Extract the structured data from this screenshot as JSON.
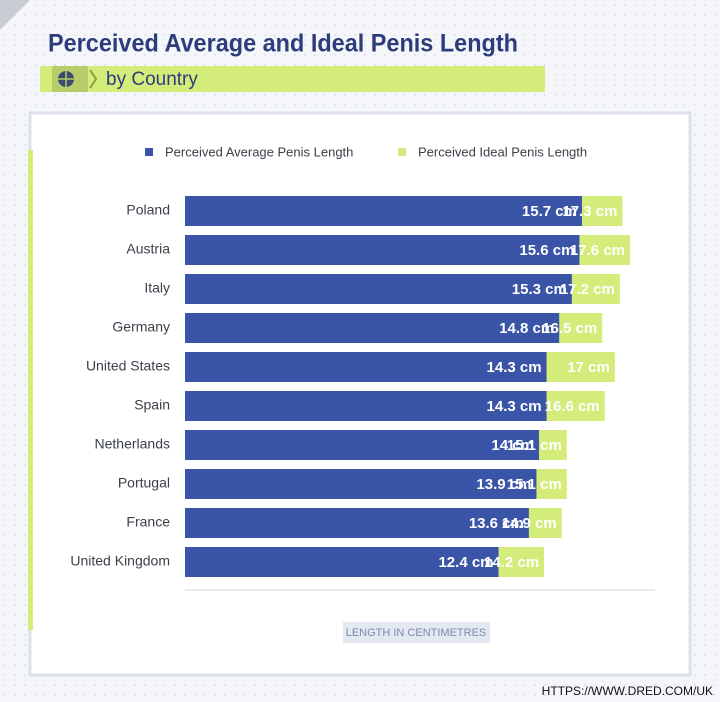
{
  "chart_data": {
    "type": "bar",
    "title": "Perceived Average and Ideal Penis Length",
    "subtitle": "by Country",
    "x_label": "LENGTH IN CENTIMETRES",
    "source": "HTTPS://WWW.DRED.COM/UK",
    "categories": [
      "Poland",
      "Austria",
      "Italy",
      "Germany",
      "United States",
      "Spain",
      "Netherlands",
      "Portugal",
      "France",
      "United Kingdom"
    ],
    "series": [
      {
        "name": "Perceived Average Penis Length",
        "color": "#3a55a8",
        "values": [
          15.7,
          15.6,
          15.3,
          14.8,
          14.3,
          14.3,
          14,
          13.9,
          13.6,
          12.4
        ],
        "value_labels": [
          "15.7 cm",
          "15.6 cm",
          "15.3 cm",
          "14.8 cm",
          "14.3 cm",
          "14.3 cm",
          "14 cm",
          "13.9 cm",
          "13.6 cm",
          "12.4 cm"
        ]
      },
      {
        "name": "Perceived Ideal Penis Length",
        "color": "#d4ec7a",
        "values": [
          17.3,
          17.6,
          17.2,
          16.5,
          17,
          16.6,
          15.1,
          15.1,
          14.9,
          14.2
        ],
        "value_labels": [
          "17.3 cm",
          "17.6 cm",
          "17.2 cm",
          "16.5 cm",
          "17 cm",
          "16.6 cm",
          "15.1 cm",
          "15.1 cm",
          "14.9 cm",
          "14.2 cm"
        ]
      }
    ]
  }
}
